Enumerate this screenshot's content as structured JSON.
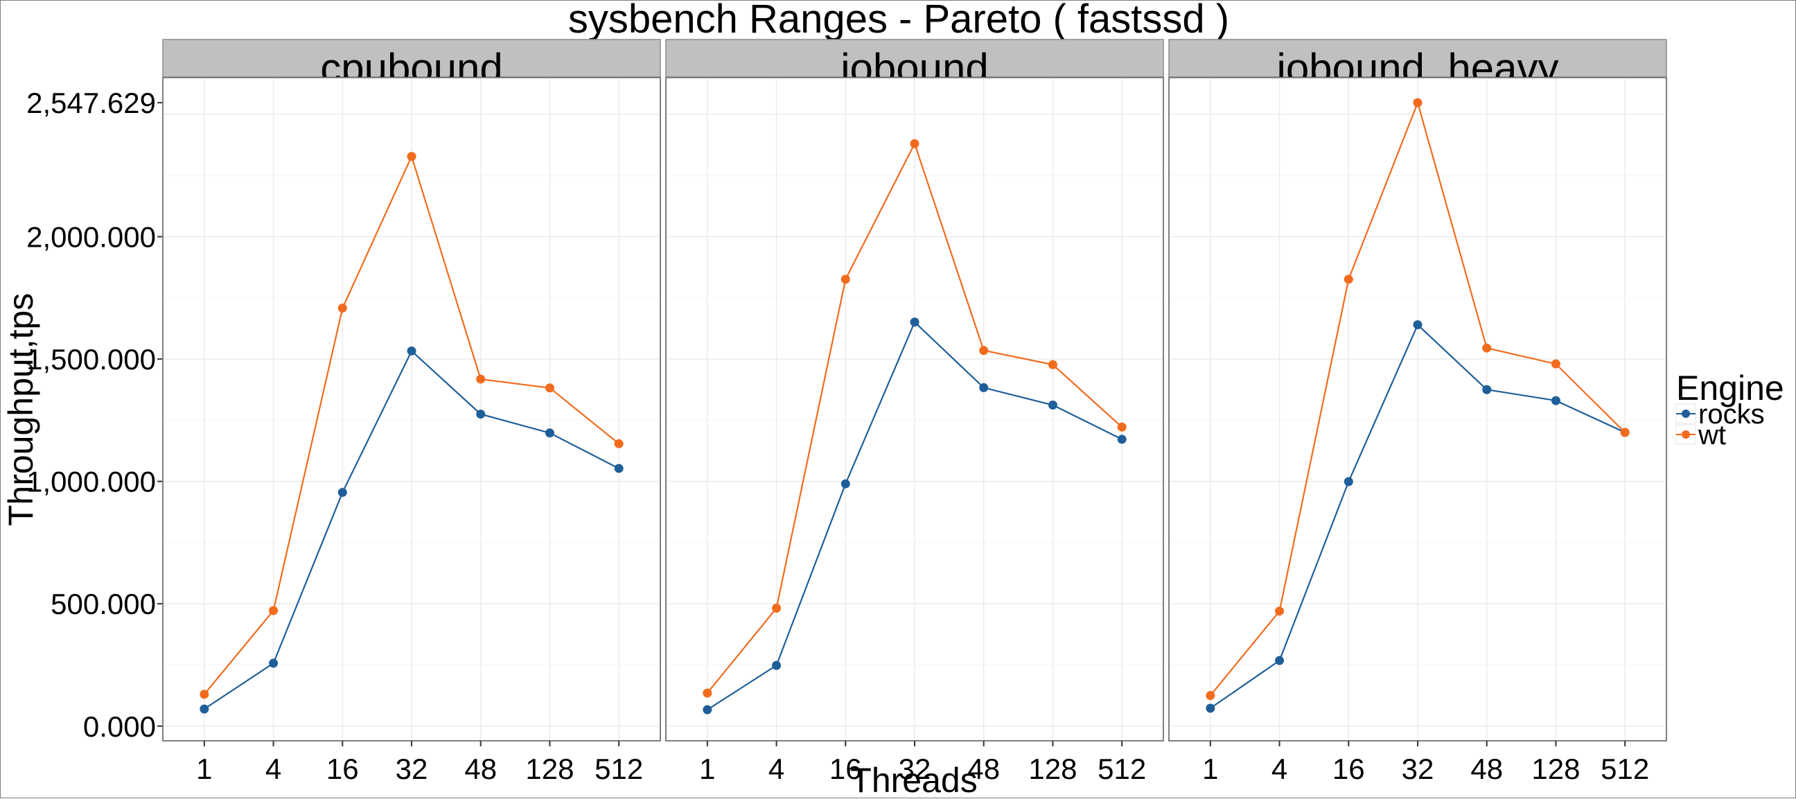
{
  "chart_data": {
    "type": "line",
    "title": "sysbench Ranges - Pareto ( fastssd )",
    "xlabel": "Threads",
    "ylabel": "Throughput,tps",
    "categories": [
      "1",
      "4",
      "16",
      "32",
      "48",
      "128",
      "512"
    ],
    "y_ticks": [
      {
        "value": 0,
        "label": "0.000"
      },
      {
        "value": 500,
        "label": "500.000"
      },
      {
        "value": 1000,
        "label": "1,000.000"
      },
      {
        "value": 1500,
        "label": "1,500.000"
      },
      {
        "value": 2000,
        "label": "2,000.000"
      },
      {
        "value": 2547.629,
        "label": "2,547.629"
      }
    ],
    "ylim": [
      -60,
      2650
    ],
    "grid": true,
    "legend": {
      "title": "Engine",
      "position": "right"
    },
    "colors": {
      "rocks": "#1f5f99",
      "wt": "#f26b1d"
    },
    "panels": [
      {
        "name": "cpubound",
        "series": [
          {
            "name": "rocks",
            "values": [
              70,
              257,
              955,
              1533,
              1275,
              1198,
              1053
            ]
          },
          {
            "name": "wt",
            "values": [
              130,
              472,
              1708,
              2328,
              1418,
              1382,
              1154
            ]
          }
        ]
      },
      {
        "name": "iobound",
        "series": [
          {
            "name": "rocks",
            "values": [
              67,
              248,
              990,
              1651,
              1383,
              1312,
              1172
            ]
          },
          {
            "name": "wt",
            "values": [
              135,
              482,
              1826,
              2380,
              1535,
              1477,
              1222
            ]
          }
        ]
      },
      {
        "name": "iobound_heavy",
        "series": [
          {
            "name": "rocks",
            "values": [
              73,
              268,
              999,
              1640,
              1375,
              1330,
              1200
            ]
          },
          {
            "name": "wt",
            "values": [
              125,
              470,
              1826,
              2547.629,
              1545,
              1480,
              1200
            ]
          }
        ]
      }
    ]
  }
}
